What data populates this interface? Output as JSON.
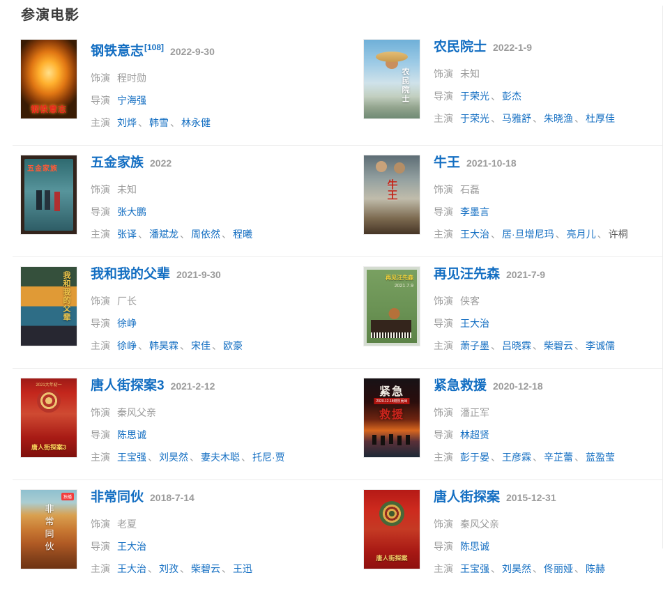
{
  "header": {
    "title": "参演电影"
  },
  "labels": {
    "role": "饰演",
    "director": "导演",
    "starring": "主演"
  },
  "colors": {
    "link_blue": "#136ec2",
    "muted_gray": "#9b9b9b",
    "divider": "#ececec",
    "plain_dark": "#595959"
  },
  "separator": "、",
  "movies": [
    {
      "title": "钢铁意志",
      "ref": "[108]",
      "date": "2022-9-30",
      "role": "程时勋",
      "directors": [
        {
          "name": "宁海强",
          "link": true
        }
      ],
      "starring": [
        {
          "name": "刘烨",
          "link": true
        },
        {
          "name": "韩雪",
          "link": true
        },
        {
          "name": "林永健",
          "link": true
        }
      ],
      "poster": {
        "style": "p1",
        "captions": [
          "钢铁意志"
        ]
      }
    },
    {
      "title": "农民院士",
      "ref": "",
      "date": "2022-1-9",
      "role": "未知",
      "directors": [
        {
          "name": "于荣光",
          "link": true
        },
        {
          "name": "彭杰",
          "link": true
        }
      ],
      "starring": [
        {
          "name": "于荣光",
          "link": true
        },
        {
          "name": "马雅舒",
          "link": true
        },
        {
          "name": "朱晓渔",
          "link": true
        },
        {
          "name": "杜厚佳",
          "link": true
        }
      ],
      "poster": {
        "style": "p2",
        "captions": [
          "农民院士"
        ]
      }
    },
    {
      "title": "五金家族",
      "ref": "",
      "date": "2022",
      "role": "未知",
      "directors": [
        {
          "name": "张大鹏",
          "link": true
        }
      ],
      "starring": [
        {
          "name": "张译",
          "link": true
        },
        {
          "name": "潘斌龙",
          "link": true
        },
        {
          "name": "周依然",
          "link": true
        },
        {
          "name": "程曦",
          "link": true
        }
      ],
      "poster": {
        "style": "p3",
        "captions": [
          "五金家族"
        ]
      }
    },
    {
      "title": "牛王",
      "ref": "",
      "date": "2021-10-18",
      "role": "石磊",
      "directors": [
        {
          "name": "李墨言",
          "link": true
        }
      ],
      "starring": [
        {
          "name": "王大治",
          "link": true
        },
        {
          "name": "居·旦增尼玛",
          "link": true
        },
        {
          "name": "亮月儿",
          "link": true
        },
        {
          "name": "许桐",
          "link": false
        }
      ],
      "poster": {
        "style": "p4",
        "captions": [
          "牛王"
        ]
      }
    },
    {
      "title": "我和我的父辈",
      "ref": "",
      "date": "2021-9-30",
      "role": "厂长",
      "directors": [
        {
          "name": "徐峥",
          "link": true
        }
      ],
      "starring": [
        {
          "name": "徐峥",
          "link": true
        },
        {
          "name": "韩昊霖",
          "link": true
        },
        {
          "name": "宋佳",
          "link": true
        },
        {
          "name": "欧豪",
          "link": true
        }
      ],
      "poster": {
        "style": "p5",
        "captions": [
          "我和我的父辈"
        ]
      }
    },
    {
      "title": "再见汪先森",
      "ref": "",
      "date": "2021-7-9",
      "role": "侠客",
      "directors": [
        {
          "name": "王大治",
          "link": true
        }
      ],
      "starring": [
        {
          "name": "萧子墨",
          "link": true
        },
        {
          "name": "吕晓霖",
          "link": true
        },
        {
          "name": "柴碧云",
          "link": true
        },
        {
          "name": "李诚儒",
          "link": true
        }
      ],
      "poster": {
        "style": "p6",
        "captions": [
          "再见汪先森",
          "2021.7.9"
        ]
      }
    },
    {
      "title": "唐人街探案3",
      "ref": "",
      "date": "2021-2-12",
      "role": "秦风父亲",
      "directors": [
        {
          "name": "陈思诚",
          "link": true
        }
      ],
      "starring": [
        {
          "name": "王宝强",
          "link": true
        },
        {
          "name": "刘昊然",
          "link": true
        },
        {
          "name": "妻夫木聪",
          "link": true
        },
        {
          "name": "托尼·贾",
          "link": true
        }
      ],
      "poster": {
        "style": "p7",
        "captions": [
          "2021大年初一",
          "唐人街探案3"
        ]
      }
    },
    {
      "title": "紧急救援",
      "ref": "",
      "date": "2020-12-18",
      "role": "潘正军",
      "directors": [
        {
          "name": "林超贤",
          "link": true
        }
      ],
      "starring": [
        {
          "name": "彭于晏",
          "link": true
        },
        {
          "name": "王彦霖",
          "link": true
        },
        {
          "name": "辛芷蕾",
          "link": true
        },
        {
          "name": "蓝盈莹",
          "link": true
        }
      ],
      "poster": {
        "style": "p8",
        "captions": [
          "紧急",
          "2020.12.18燃烈而出",
          "救援"
        ]
      }
    },
    {
      "title": "非常同伙",
      "ref": "",
      "date": "2018-7-14",
      "role": "老夏",
      "directors": [
        {
          "name": "王大治",
          "link": true
        }
      ],
      "starring": [
        {
          "name": "王大治",
          "link": true
        },
        {
          "name": "刘孜",
          "link": true
        },
        {
          "name": "柴碧云",
          "link": true
        },
        {
          "name": "王迅",
          "link": true
        }
      ],
      "poster": {
        "style": "p9",
        "captions": [
          "非常同伙",
          "独播"
        ]
      }
    },
    {
      "title": "唐人街探案",
      "ref": "",
      "date": "2015-12-31",
      "role": "秦风父亲",
      "directors": [
        {
          "name": "陈思诚",
          "link": true
        }
      ],
      "starring": [
        {
          "name": "王宝强",
          "link": true
        },
        {
          "name": "刘昊然",
          "link": true
        },
        {
          "name": "佟丽娅",
          "link": true
        },
        {
          "name": "陈赫",
          "link": true
        }
      ],
      "poster": {
        "style": "p10",
        "captions": [
          "唐人街探案"
        ]
      }
    }
  ]
}
